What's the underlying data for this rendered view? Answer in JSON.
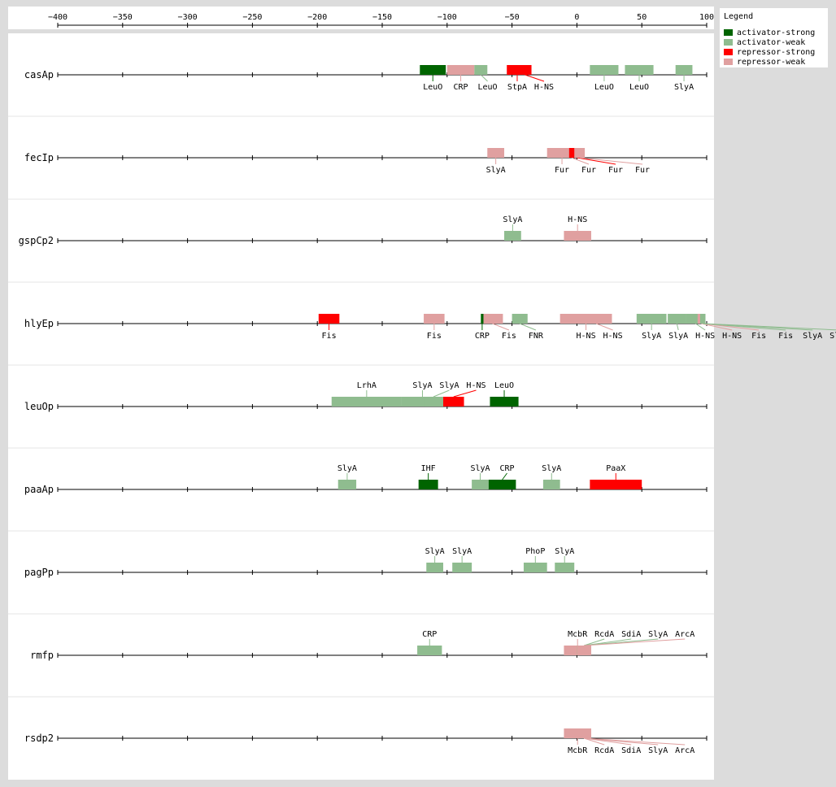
{
  "axis": {
    "ticks": [
      -400,
      -350,
      -300,
      -250,
      -200,
      -150,
      -100,
      -50,
      0,
      50,
      100
    ],
    "tick_labels": [
      "−400",
      "−350",
      "−300",
      "−250",
      "−200",
      "−150",
      "−100",
      "−50",
      "0",
      "50",
      "100"
    ]
  },
  "legend": {
    "title": "Legend",
    "entries": [
      {
        "label": "activator-strong",
        "color": "#006400"
      },
      {
        "label": "activator-weak",
        "color": "#8fbc8f"
      },
      {
        "label": "repressor-strong",
        "color": "#ff0000"
      },
      {
        "label": "repressor-weak",
        "color": "#e0a0a0"
      }
    ]
  },
  "chart_data": {
    "type": "feature-track",
    "xlim": [
      -400,
      100
    ],
    "colors": {
      "activator-strong": "#006400",
      "activator-weak": "#8fbc8f",
      "repressor-strong": "#ff0000",
      "repressor-weak": "#e0a0a0"
    },
    "tracks": [
      {
        "name": "casAp",
        "sites": [
          {
            "tf": "LeuO",
            "start": -121,
            "end": -101,
            "type": "activator-strong",
            "side": "below"
          },
          {
            "tf": "CRP",
            "start": -100,
            "end": -79,
            "type": "repressor-weak",
            "side": "below"
          },
          {
            "tf": "LeuO",
            "start": -79,
            "end": -69,
            "type": "activator-weak",
            "side": "below"
          },
          {
            "tf": "StpA",
            "start": -54,
            "end": -38,
            "type": "repressor-strong",
            "side": "below"
          },
          {
            "tf": "H-NS",
            "start": -45,
            "end": -35,
            "type": "repressor-strong",
            "side": "below"
          },
          {
            "tf": "LeuO",
            "start": 10,
            "end": 32,
            "type": "activator-weak",
            "side": "below"
          },
          {
            "tf": "LeuO",
            "start": 37,
            "end": 59,
            "type": "activator-weak",
            "side": "below"
          },
          {
            "tf": "SlyA",
            "start": 76,
            "end": 89,
            "type": "activator-weak",
            "side": "below"
          }
        ]
      },
      {
        "name": "fecIp",
        "sites": [
          {
            "tf": "SlyA",
            "start": -69,
            "end": -56,
            "type": "repressor-weak",
            "side": "below"
          },
          {
            "tf": "Fur",
            "start": -23,
            "end": 0,
            "type": "repressor-weak",
            "side": "below"
          },
          {
            "tf": "Fur",
            "start": -14,
            "end": 6,
            "type": "repressor-weak",
            "side": "below"
          },
          {
            "tf": "Fur",
            "start": -6,
            "end": 6,
            "type": "repressor-strong",
            "side": "below"
          },
          {
            "tf": "Fur",
            "start": -2,
            "end": 6,
            "type": "repressor-weak",
            "side": "below"
          }
        ]
      },
      {
        "name": "gspCp2",
        "sites": [
          {
            "tf": "SlyA",
            "start": -56,
            "end": -43,
            "type": "activator-weak",
            "side": "above"
          },
          {
            "tf": "H-NS",
            "start": -10,
            "end": 11,
            "type": "repressor-weak",
            "side": "above"
          }
        ]
      },
      {
        "name": "hlyEp",
        "sites": [
          {
            "tf": "Fis",
            "start": -199,
            "end": -183,
            "type": "repressor-strong",
            "side": "below"
          },
          {
            "tf": "Fis",
            "start": -118,
            "end": -102,
            "type": "repressor-weak",
            "side": "below"
          },
          {
            "tf": "Fis",
            "start": -73,
            "end": -57,
            "type": "repressor-weak",
            "side": "below"
          },
          {
            "tf": "CRP",
            "start": -74,
            "end": -72,
            "type": "activator-strong",
            "side": "below"
          },
          {
            "tf": "FNR",
            "start": -50,
            "end": -38,
            "type": "activator-weak",
            "side": "below"
          },
          {
            "tf": "H-NS",
            "start": -13,
            "end": 27,
            "type": "repressor-weak",
            "side": "below"
          },
          {
            "tf": "H-NS",
            "start": 3,
            "end": 27,
            "type": "repressor-weak",
            "side": "below"
          },
          {
            "tf": "SlyA",
            "start": 46,
            "end": 69,
            "type": "activator-weak",
            "side": "below"
          },
          {
            "tf": "SlyA",
            "start": 70,
            "end": 84,
            "type": "activator-weak",
            "side": "below"
          },
          {
            "tf": "H-NS",
            "start": 84,
            "end": 99,
            "type": "activator-weak",
            "side": "below"
          },
          {
            "tf": "H-NS",
            "start": 93,
            "end": 99,
            "type": "repressor-weak",
            "side": "below"
          },
          {
            "tf": "Fis",
            "start": 95,
            "end": 99,
            "type": "repressor-weak",
            "side": "below"
          },
          {
            "tf": "Fis",
            "start": 95,
            "end": 99,
            "type": "activator-weak",
            "side": "below"
          },
          {
            "tf": "SlyA",
            "start": 95,
            "end": 99,
            "type": "activator-weak",
            "side": "below"
          },
          {
            "tf": "SlyA",
            "start": 95,
            "end": 99,
            "type": "activator-weak",
            "side": "below"
          }
        ]
      },
      {
        "name": "leuOp",
        "sites": [
          {
            "tf": "LrhA",
            "start": -189,
            "end": -135,
            "type": "activator-weak",
            "side": "above"
          },
          {
            "tf": "SlyA",
            "start": -135,
            "end": -103,
            "type": "activator-weak",
            "side": "above"
          },
          {
            "tf": "SlyA",
            "start": -118,
            "end": -103,
            "type": "activator-weak",
            "side": "above"
          },
          {
            "tf": "H-NS",
            "start": -103,
            "end": -87,
            "type": "repressor-strong",
            "side": "above"
          },
          {
            "tf": "LeuO",
            "start": -67,
            "end": -45,
            "type": "activator-strong",
            "side": "above"
          }
        ]
      },
      {
        "name": "paaAp",
        "sites": [
          {
            "tf": "SlyA",
            "start": -184,
            "end": -170,
            "type": "activator-weak",
            "side": "above"
          },
          {
            "tf": "IHF",
            "start": -122,
            "end": -107,
            "type": "activator-strong",
            "side": "above"
          },
          {
            "tf": "SlyA",
            "start": -81,
            "end": -68,
            "type": "activator-weak",
            "side": "above"
          },
          {
            "tf": "CRP",
            "start": -68,
            "end": -47,
            "type": "activator-strong",
            "side": "above"
          },
          {
            "tf": "SlyA",
            "start": -26,
            "end": -13,
            "type": "activator-weak",
            "side": "above"
          },
          {
            "tf": "PaaX",
            "start": 10,
            "end": 50,
            "type": "repressor-strong",
            "side": "above"
          }
        ]
      },
      {
        "name": "pagPp",
        "sites": [
          {
            "tf": "SlyA",
            "start": -116,
            "end": -103,
            "type": "activator-weak",
            "side": "above"
          },
          {
            "tf": "SlyA",
            "start": -96,
            "end": -81,
            "type": "activator-weak",
            "side": "above"
          },
          {
            "tf": "PhoP",
            "start": -41,
            "end": -23,
            "type": "activator-weak",
            "side": "above"
          },
          {
            "tf": "SlyA",
            "start": -17,
            "end": -2,
            "type": "activator-weak",
            "side": "above"
          }
        ]
      },
      {
        "name": "rmfp",
        "sites": [
          {
            "tf": "CRP",
            "start": -123,
            "end": -104,
            "type": "activator-weak",
            "side": "above"
          },
          {
            "tf": "McbR",
            "start": -10,
            "end": 11,
            "type": "repressor-weak",
            "side": "above"
          },
          {
            "tf": "RcdA",
            "start": 0,
            "end": 11,
            "type": "activator-weak",
            "side": "above"
          },
          {
            "tf": "SdiA",
            "start": 0,
            "end": 11,
            "type": "activator-weak",
            "side": "above"
          },
          {
            "tf": "SlyA",
            "start": 0,
            "end": 11,
            "type": "activator-weak",
            "side": "above"
          },
          {
            "tf": "ArcA",
            "start": 0,
            "end": 11,
            "type": "repressor-weak",
            "side": "above"
          }
        ]
      },
      {
        "name": "rsdp2",
        "sites": [
          {
            "tf": "McbR",
            "start": -10,
            "end": 11,
            "type": "repressor-weak",
            "side": "below"
          },
          {
            "tf": "RcdA",
            "start": 0,
            "end": 11,
            "type": "repressor-weak",
            "side": "below"
          },
          {
            "tf": "SdiA",
            "start": 0,
            "end": 11,
            "type": "repressor-weak",
            "side": "below"
          },
          {
            "tf": "SlyA",
            "start": 0,
            "end": 11,
            "type": "repressor-weak",
            "side": "below"
          },
          {
            "tf": "ArcA",
            "start": 0,
            "end": 11,
            "type": "repressor-weak",
            "side": "below"
          }
        ]
      }
    ]
  }
}
